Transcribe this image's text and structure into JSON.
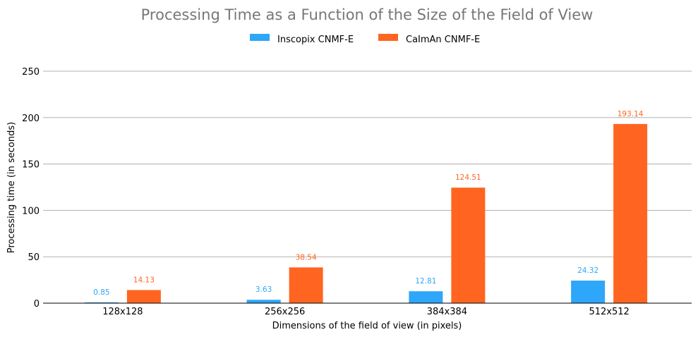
{
  "chart_data": {
    "type": "bar",
    "title": "Processing Time as a Function of the Size of the Field of View",
    "xlabel": "Dimensions of the field of view (in pixels)",
    "ylabel": "Processing time (in seconds)",
    "categories": [
      "128x128",
      "256x256",
      "384x384",
      "512x512"
    ],
    "series": [
      {
        "name": "Inscopix CNMF-E",
        "values": [
          0.85,
          3.63,
          12.81,
          24.32
        ],
        "labels": [
          "0.85",
          "3.63",
          "12.81",
          "24.32"
        ],
        "color": "#2ea6f9"
      },
      {
        "name": "CaImAn CNMF-E",
        "values": [
          14.13,
          38.54,
          124.51,
          193.14
        ],
        "labels": [
          "14.13",
          "38.54",
          "124.51",
          "193.14"
        ],
        "color": "#ff6520"
      }
    ],
    "ylim": [
      0,
      250
    ],
    "yticks": [
      0,
      50,
      100,
      150,
      200,
      250
    ],
    "grid": true,
    "legend_position": "top-center"
  }
}
